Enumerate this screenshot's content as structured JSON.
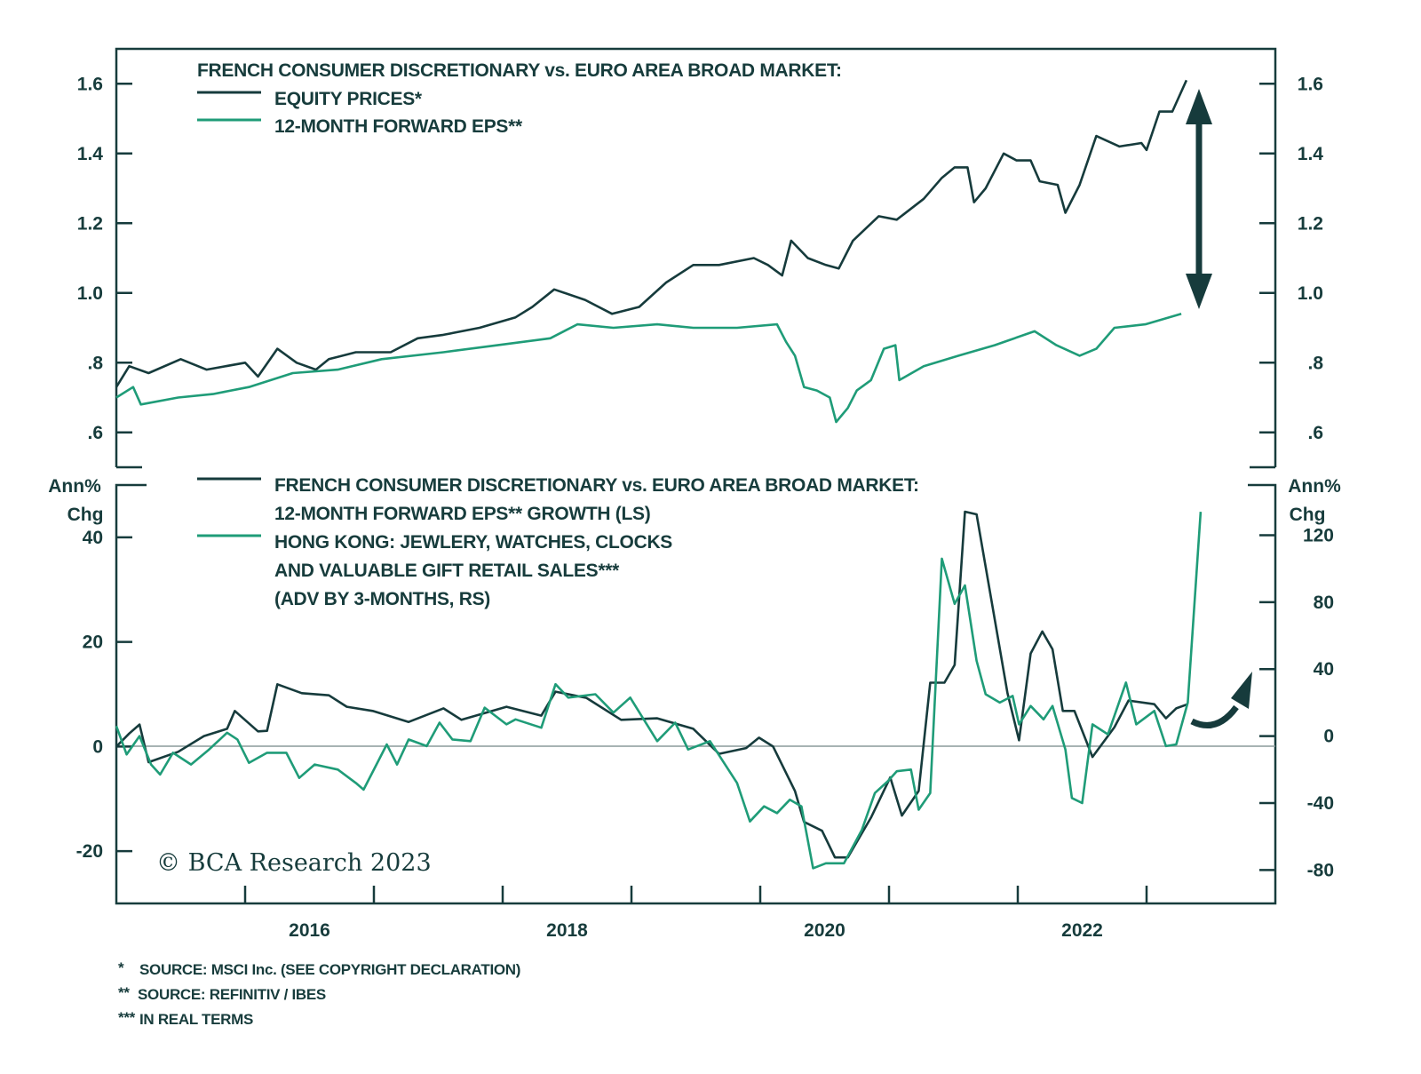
{
  "colors": {
    "dark": "#163b3c",
    "green": "#1f9c78",
    "zero": "#8a9a9a"
  },
  "chart_data": [
    {
      "type": "line",
      "title": "FRENCH CONSUMER DISCRETIONARY vs. EURO AREA BROAD MARKET:",
      "xlim": [
        2015,
        2024
      ],
      "ylim": [
        0.5,
        1.7
      ],
      "yticks": [
        0.6,
        0.8,
        1.0,
        1.2,
        1.4,
        1.6
      ],
      "ytick_labels": [
        ".6",
        ".8",
        "1.0",
        "1.2",
        "1.4",
        "1.6"
      ],
      "legend_placement": "top-left",
      "annotation": "double-headed arrow between series at latest point",
      "series": [
        {
          "name": "EQUITY PRICES*",
          "color_key": "dark",
          "points": [
            [
              2015.0,
              0.73
            ],
            [
              2015.1,
              0.79
            ],
            [
              2015.25,
              0.77
            ],
            [
              2015.5,
              0.81
            ],
            [
              2015.7,
              0.78
            ],
            [
              2016.0,
              0.8
            ],
            [
              2016.1,
              0.76
            ],
            [
              2016.25,
              0.84
            ],
            [
              2016.4,
              0.8
            ],
            [
              2016.55,
              0.78
            ],
            [
              2016.65,
              0.81
            ],
            [
              2016.86,
              0.83
            ],
            [
              2017.13,
              0.83
            ],
            [
              2017.34,
              0.87
            ],
            [
              2017.54,
              0.88
            ],
            [
              2017.82,
              0.9
            ],
            [
              2018.1,
              0.93
            ],
            [
              2018.23,
              0.96
            ],
            [
              2018.4,
              1.01
            ],
            [
              2018.64,
              0.98
            ],
            [
              2018.85,
              0.94
            ],
            [
              2019.06,
              0.96
            ],
            [
              2019.27,
              1.03
            ],
            [
              2019.48,
              1.08
            ],
            [
              2019.68,
              1.08
            ],
            [
              2019.95,
              1.1
            ],
            [
              2020.06,
              1.08
            ],
            [
              2020.17,
              1.05
            ],
            [
              2020.24,
              1.15
            ],
            [
              2020.37,
              1.1
            ],
            [
              2020.51,
              1.08
            ],
            [
              2020.61,
              1.07
            ],
            [
              2020.72,
              1.15
            ],
            [
              2020.92,
              1.22
            ],
            [
              2021.06,
              1.21
            ],
            [
              2021.27,
              1.27
            ],
            [
              2021.41,
              1.33
            ],
            [
              2021.51,
              1.36
            ],
            [
              2021.61,
              1.36
            ],
            [
              2021.66,
              1.26
            ],
            [
              2021.75,
              1.3
            ],
            [
              2021.89,
              1.4
            ],
            [
              2021.99,
              1.38
            ],
            [
              2022.1,
              1.38
            ],
            [
              2022.17,
              1.32
            ],
            [
              2022.31,
              1.31
            ],
            [
              2022.37,
              1.23
            ],
            [
              2022.48,
              1.31
            ],
            [
              2022.61,
              1.45
            ],
            [
              2022.79,
              1.42
            ],
            [
              2022.96,
              1.43
            ],
            [
              2023.0,
              1.41
            ],
            [
              2023.1,
              1.52
            ],
            [
              2023.2,
              1.52
            ],
            [
              2023.31,
              1.61
            ]
          ]
        },
        {
          "name": "12-MONTH FORWARD EPS**",
          "color_key": "green",
          "points": [
            [
              2015.0,
              0.7
            ],
            [
              2015.13,
              0.73
            ],
            [
              2015.19,
              0.68
            ],
            [
              2015.48,
              0.7
            ],
            [
              2015.75,
              0.71
            ],
            [
              2016.03,
              0.73
            ],
            [
              2016.37,
              0.77
            ],
            [
              2016.72,
              0.78
            ],
            [
              2017.06,
              0.81
            ],
            [
              2017.54,
              0.83
            ],
            [
              2017.96,
              0.85
            ],
            [
              2018.37,
              0.87
            ],
            [
              2018.58,
              0.91
            ],
            [
              2018.86,
              0.9
            ],
            [
              2019.2,
              0.91
            ],
            [
              2019.48,
              0.9
            ],
            [
              2019.82,
              0.9
            ],
            [
              2020.13,
              0.91
            ],
            [
              2020.2,
              0.86
            ],
            [
              2020.27,
              0.82
            ],
            [
              2020.34,
              0.73
            ],
            [
              2020.44,
              0.72
            ],
            [
              2020.54,
              0.7
            ],
            [
              2020.59,
              0.63
            ],
            [
              2020.68,
              0.67
            ],
            [
              2020.75,
              0.72
            ],
            [
              2020.86,
              0.75
            ],
            [
              2020.96,
              0.84
            ],
            [
              2021.05,
              0.85
            ],
            [
              2021.08,
              0.75
            ],
            [
              2021.27,
              0.79
            ],
            [
              2021.54,
              0.82
            ],
            [
              2021.82,
              0.85
            ],
            [
              2022.13,
              0.89
            ],
            [
              2022.3,
              0.85
            ],
            [
              2022.48,
              0.82
            ],
            [
              2022.61,
              0.84
            ],
            [
              2022.75,
              0.9
            ],
            [
              2022.99,
              0.91
            ],
            [
              2023.27,
              0.94
            ]
          ]
        }
      ]
    },
    {
      "type": "line",
      "title": "FRENCH CONSUMER DISCRETIONARY vs. EURO AREA BROAD MARKET:",
      "xlim": [
        2015,
        2024
      ],
      "xticks": [
        2016,
        2017,
        2018,
        2019,
        2020,
        2021,
        2022,
        2023
      ],
      "xtick_labels": [
        "2016",
        "2018",
        "2020",
        "2022"
      ],
      "xtick_label_positions": [
        2016.5,
        2018.5,
        2020.5,
        2022.5
      ],
      "ylabel_left": [
        "Ann%",
        "Chg"
      ],
      "ylabel_right": [
        "Ann%",
        "Chg"
      ],
      "ylim_left": [
        -30,
        50
      ],
      "ylim_right": [
        -100,
        150
      ],
      "yticks_left": [
        -20,
        0,
        20,
        40
      ],
      "yticks_right": [
        -80,
        -40,
        0,
        40,
        80,
        120
      ],
      "legend_placement": "top-left",
      "annotation": "curved up arrow at latest point",
      "legend_lines": [
        "12-MONTH FORWARD EPS** GROWTH (LS)",
        "HONG KONG: JEWLERY, WATCHES, CLOCKS",
        "AND VALUABLE GIFT RETAIL SALES***",
        "(ADV BY 3-MONTHS, RS)"
      ],
      "series": [
        {
          "name": "12-MONTH FORWARD EPS** GROWTH (LS)",
          "axis": "left",
          "color_key": "dark",
          "points": [
            [
              2015.0,
              0
            ],
            [
              2015.1,
              2.5
            ],
            [
              2015.18,
              4.2
            ],
            [
              2015.25,
              -3
            ],
            [
              2015.48,
              -1
            ],
            [
              2015.68,
              2
            ],
            [
              2015.86,
              3.4
            ],
            [
              2015.92,
              6.8
            ],
            [
              2016.1,
              2.9
            ],
            [
              2016.17,
              3
            ],
            [
              2016.25,
              11.9
            ],
            [
              2016.44,
              10.2
            ],
            [
              2016.65,
              9.8
            ],
            [
              2016.79,
              7.6
            ],
            [
              2016.99,
              6.8
            ],
            [
              2017.27,
              4.7
            ],
            [
              2017.54,
              7.3
            ],
            [
              2017.68,
              5.1
            ],
            [
              2018.03,
              7.6
            ],
            [
              2018.3,
              5.9
            ],
            [
              2018.41,
              10.5
            ],
            [
              2018.65,
              9.3
            ],
            [
              2018.92,
              5.1
            ],
            [
              2019.2,
              5.4
            ],
            [
              2019.48,
              3.4
            ],
            [
              2019.68,
              -1.4
            ],
            [
              2019.89,
              -0.3
            ],
            [
              2019.99,
              1.7
            ],
            [
              2020.1,
              0
            ],
            [
              2020.27,
              -8.5
            ],
            [
              2020.34,
              -14.4
            ],
            [
              2020.48,
              -16.1
            ],
            [
              2020.58,
              -21.2
            ],
            [
              2020.68,
              -21.2
            ],
            [
              2020.86,
              -13.6
            ],
            [
              2021.01,
              -5.9
            ],
            [
              2021.1,
              -13.2
            ],
            [
              2021.23,
              -8.5
            ],
            [
              2021.32,
              12.2
            ],
            [
              2021.43,
              12.2
            ],
            [
              2021.51,
              15.6
            ],
            [
              2021.59,
              44.9
            ],
            [
              2021.68,
              44.4
            ],
            [
              2021.92,
              10.2
            ],
            [
              2022.01,
              1.2
            ],
            [
              2022.1,
              17.8
            ],
            [
              2022.19,
              22
            ],
            [
              2022.27,
              18.6
            ],
            [
              2022.35,
              6.8
            ],
            [
              2022.44,
              6.8
            ],
            [
              2022.58,
              -2
            ],
            [
              2022.75,
              3.7
            ],
            [
              2022.86,
              8.8
            ],
            [
              2023.06,
              8.1
            ],
            [
              2023.15,
              5.4
            ],
            [
              2023.23,
              7.3
            ],
            [
              2023.32,
              8.1
            ]
          ]
        },
        {
          "name": "HONG KONG: JEWLERY, WATCHES, CLOCKS AND VALUABLE GIFT RETAIL SALES*** (ADV BY 3-MONTHS, RS)",
          "axis": "right",
          "color_key": "green",
          "points": [
            [
              2015.0,
              6
            ],
            [
              2015.08,
              -11
            ],
            [
              2015.18,
              0
            ],
            [
              2015.27,
              -17
            ],
            [
              2015.34,
              -23
            ],
            [
              2015.44,
              -10
            ],
            [
              2015.58,
              -17
            ],
            [
              2015.72,
              -8
            ],
            [
              2015.86,
              2
            ],
            [
              2015.94,
              -2
            ],
            [
              2016.03,
              -16
            ],
            [
              2016.17,
              -10
            ],
            [
              2016.32,
              -10
            ],
            [
              2016.42,
              -25
            ],
            [
              2016.54,
              -17
            ],
            [
              2016.72,
              -20
            ],
            [
              2016.86,
              -28
            ],
            [
              2016.92,
              -32
            ],
            [
              2017.1,
              -5
            ],
            [
              2017.18,
              -17
            ],
            [
              2017.27,
              -2
            ],
            [
              2017.41,
              -6
            ],
            [
              2017.51,
              8
            ],
            [
              2017.61,
              -2
            ],
            [
              2017.75,
              -3
            ],
            [
              2017.86,
              17
            ],
            [
              2018.03,
              7
            ],
            [
              2018.1,
              10
            ],
            [
              2018.3,
              5
            ],
            [
              2018.41,
              31
            ],
            [
              2018.51,
              23
            ],
            [
              2018.72,
              25
            ],
            [
              2018.86,
              14
            ],
            [
              2018.99,
              23
            ],
            [
              2019.2,
              -3
            ],
            [
              2019.34,
              8
            ],
            [
              2019.44,
              -8
            ],
            [
              2019.61,
              -3
            ],
            [
              2019.82,
              -28
            ],
            [
              2019.92,
              -51
            ],
            [
              2020.03,
              -42
            ],
            [
              2020.13,
              -46
            ],
            [
              2020.23,
              -38
            ],
            [
              2020.32,
              -42
            ],
            [
              2020.41,
              -79
            ],
            [
              2020.51,
              -76
            ],
            [
              2020.65,
              -76
            ],
            [
              2020.79,
              -56
            ],
            [
              2020.89,
              -34
            ],
            [
              2020.99,
              -27
            ],
            [
              2021.06,
              -21
            ],
            [
              2021.17,
              -20
            ],
            [
              2021.23,
              -44
            ],
            [
              2021.32,
              -34
            ],
            [
              2021.41,
              106
            ],
            [
              2021.51,
              79
            ],
            [
              2021.59,
              90
            ],
            [
              2021.68,
              45
            ],
            [
              2021.75,
              25
            ],
            [
              2021.86,
              20
            ],
            [
              2021.96,
              24
            ],
            [
              2022.01,
              7
            ],
            [
              2022.1,
              18
            ],
            [
              2022.2,
              10
            ],
            [
              2022.27,
              18
            ],
            [
              2022.37,
              -8
            ],
            [
              2022.42,
              -37
            ],
            [
              2022.5,
              -40
            ],
            [
              2022.58,
              7
            ],
            [
              2022.7,
              1
            ],
            [
              2022.84,
              32
            ],
            [
              2022.92,
              7
            ],
            [
              2023.06,
              15
            ],
            [
              2023.15,
              -6
            ],
            [
              2023.23,
              -5
            ],
            [
              2023.32,
              20
            ],
            [
              2023.42,
              134
            ]
          ]
        }
      ]
    }
  ],
  "top_legend": {
    "title": "FRENCH CONSUMER DISCRETIONARY vs. EURO AREA BROAD MARKET:",
    "item1": "EQUITY PRICES*",
    "item2": "12-MONTH FORWARD EPS**"
  },
  "bottom_legend": {
    "title": "FRENCH CONSUMER DISCRETIONARY vs. EURO AREA BROAD MARKET:",
    "line1": "12-MONTH FORWARD EPS** GROWTH (LS)",
    "line2": "HONG KONG: JEWLERY, WATCHES, CLOCKS",
    "line3": "AND VALUABLE GIFT RETAIL SALES***",
    "line4": "(ADV BY 3-MONTHS, RS)"
  },
  "axis_titles": {
    "left1": "Ann%",
    "left2": "Chg",
    "right1": "Ann%",
    "right2": "Chg"
  },
  "copyright": "© BCA Research 2023",
  "footnotes": [
    {
      "mark": "*",
      "text": "SOURCE: MSCI Inc. (SEE COPYRIGHT DECLARATION)"
    },
    {
      "mark": "**",
      "text": "SOURCE: REFINITIV / IBES"
    },
    {
      "mark": "***",
      "text": "IN REAL TERMS"
    }
  ]
}
